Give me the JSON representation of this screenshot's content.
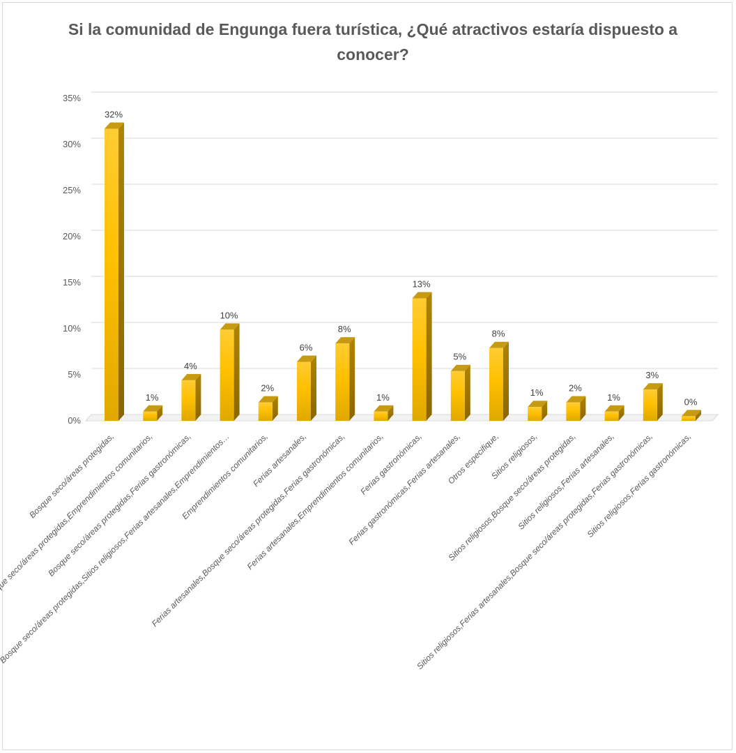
{
  "chart_data": {
    "type": "bar",
    "title": "Si la comunidad de Engunga fuera turística, ¿Qué atractivos estaría dispuesto a conocer?",
    "title_lines": [
      "Si la comunidad de Engunga fuera turística, ¿Qué atractivos estaría dispuesto a",
      "conocer?"
    ],
    "xlabel": "",
    "ylabel": "",
    "ylim": [
      0,
      35
    ],
    "yticks": [
      "0%",
      "5%",
      "10%",
      "15%",
      "20%",
      "25%",
      "30%",
      "35%"
    ],
    "grid": true,
    "legend": "none",
    "bar_style": "3d",
    "colors": {
      "bar_front": "#ffc000",
      "bar_side": "#a07800",
      "bar_top": "#c79a14",
      "grid": "#d9d9d9",
      "text": "#595959"
    },
    "categories": [
      "Bosque seco/áreas protegidas,",
      "Bosque seco/áreas protegidas,Emprendimientos comunitarios,",
      "Bosque seco/áreas protegidas,Ferias gastronómicas,",
      "Bosque seco/áreas protegidas,Sitios religiosos,Ferias artesanales,Emprendimientos…",
      "Emprendimientos comunitarios,",
      "Ferias artesanales,",
      "Ferias artesanales,Bosque seco/áreas protegidas,Ferias gastronómicas,",
      "Ferias artesanales,Emprendimientos comunitarios,",
      "Ferias gastronómicas,",
      "Ferias gastronómicas,Ferias artesanales,",
      "Otros especifique,",
      "Sitios religiosos,",
      "Sitios religiosos,Bosque seco/áreas protegidas,",
      "Sitios religiosos,Ferias artesanales,",
      "Sitios religiosos,Ferias artesanales,Bosque seco/áreas protegidas,Ferias gastronómicas,",
      "Sitios religiosos,Ferias gastronómicas,"
    ],
    "values": [
      31.7,
      1.0,
      4.4,
      9.9,
      2.0,
      6.4,
      8.4,
      1.0,
      13.3,
      5.4,
      7.9,
      1.5,
      2.0,
      1.0,
      3.4,
      0.5
    ],
    "data_labels": [
      "32%",
      "1%",
      "4%",
      "10%",
      "2%",
      "6%",
      "8%",
      "1%",
      "13%",
      "5%",
      "8%",
      "1%",
      "2%",
      "1%",
      "3%",
      "0%"
    ]
  }
}
